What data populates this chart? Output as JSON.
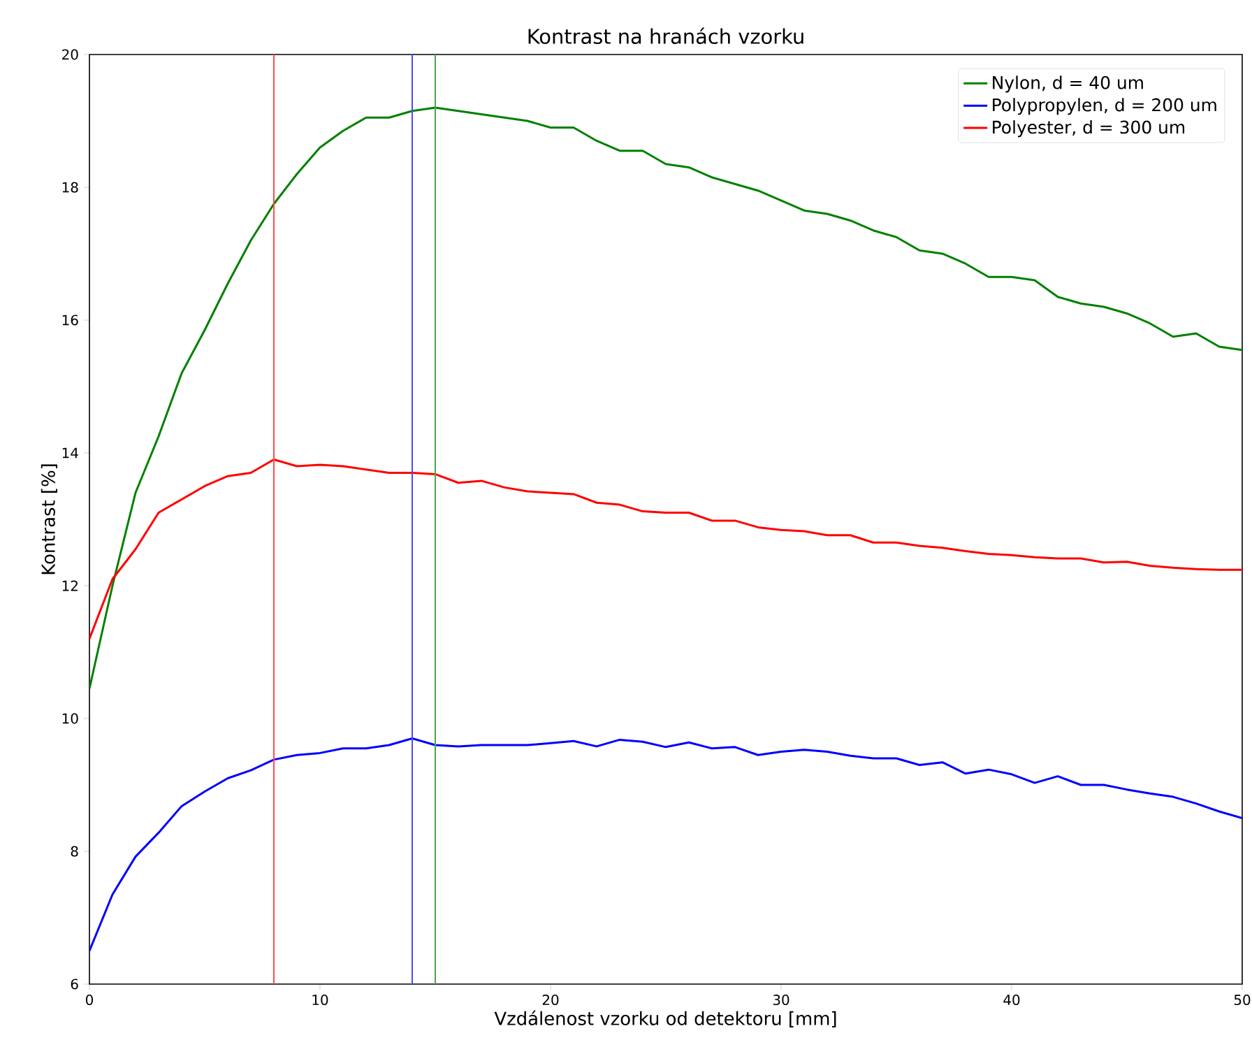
{
  "chart_data": {
    "type": "line",
    "title": "Kontrast na hranách vzorku",
    "xlabel": "Vzdálenost vzorku od detektoru [mm]",
    "ylabel": "Kontrast [%]",
    "x": [
      0,
      1,
      2,
      3,
      4,
      5,
      6,
      7,
      8,
      9,
      10,
      11,
      12,
      13,
      14,
      15,
      16,
      17,
      18,
      19,
      20,
      21,
      22,
      23,
      24,
      25,
      26,
      27,
      28,
      29,
      30,
      31,
      32,
      33,
      34,
      35,
      36,
      37,
      38,
      39,
      40,
      41,
      42,
      43,
      44,
      45,
      46,
      47,
      48,
      49,
      50
    ],
    "series": [
      {
        "name": "Nylon, d = 40 um",
        "color": "#008000",
        "values": [
          10.45,
          12.0,
          13.4,
          14.25,
          15.2,
          15.85,
          16.55,
          17.2,
          17.75,
          18.2,
          18.6,
          18.85,
          19.05,
          19.05,
          19.15,
          19.2,
          19.15,
          19.1,
          19.05,
          19.0,
          18.9,
          18.9,
          18.7,
          18.55,
          18.55,
          18.35,
          18.3,
          18.15,
          18.05,
          17.95,
          17.8,
          17.65,
          17.6,
          17.5,
          17.35,
          17.25,
          17.05,
          17.0,
          16.85,
          16.65,
          16.65,
          16.6,
          16.35,
          16.25,
          16.2,
          16.1,
          15.95,
          15.75,
          15.8,
          15.6,
          15.55
        ]
      },
      {
        "name": "Polypropylen, d = 200 um",
        "color": "#0000ff",
        "values": [
          6.5,
          7.35,
          7.92,
          8.28,
          8.68,
          8.9,
          9.1,
          9.22,
          9.38,
          9.45,
          9.48,
          9.55,
          9.55,
          9.6,
          9.7,
          9.6,
          9.58,
          9.6,
          9.6,
          9.6,
          9.63,
          9.66,
          9.58,
          9.68,
          9.65,
          9.57,
          9.64,
          9.55,
          9.57,
          9.45,
          9.5,
          9.53,
          9.5,
          9.44,
          9.4,
          9.4,
          9.3,
          9.34,
          9.17,
          9.23,
          9.16,
          9.03,
          9.13,
          9.0,
          9.0,
          8.93,
          8.87,
          8.82,
          8.72,
          8.6,
          8.5
        ]
      },
      {
        "name": "Polyester, d = 300 um",
        "color": "#ff0000",
        "values": [
          11.2,
          12.1,
          12.55,
          13.1,
          13.3,
          13.5,
          13.65,
          13.7,
          13.9,
          13.8,
          13.82,
          13.8,
          13.75,
          13.7,
          13.7,
          13.68,
          13.55,
          13.58,
          13.48,
          13.42,
          13.4,
          13.38,
          13.25,
          13.22,
          13.12,
          13.1,
          13.1,
          12.98,
          12.98,
          12.88,
          12.84,
          12.82,
          12.76,
          12.76,
          12.65,
          12.65,
          12.6,
          12.57,
          12.52,
          12.48,
          12.46,
          12.43,
          12.41,
          12.41,
          12.35,
          12.36,
          12.3,
          12.27,
          12.25,
          12.24,
          12.24
        ]
      }
    ],
    "ref_lines": [
      {
        "axis": "x",
        "value": 8,
        "color": "#ff4c4c"
      },
      {
        "axis": "x",
        "value": 14,
        "color": "#4c4cff"
      },
      {
        "axis": "x",
        "value": 15,
        "color": "#4ca64c"
      }
    ],
    "xlim": [
      0,
      50
    ],
    "ylim": [
      6,
      20
    ],
    "xticks": [
      0,
      10,
      20,
      30,
      40,
      50
    ],
    "yticks": [
      6,
      8,
      10,
      12,
      14,
      16,
      18,
      20
    ],
    "legend": "top right",
    "grid": false,
    "marker": "none",
    "line_style": "solid"
  }
}
